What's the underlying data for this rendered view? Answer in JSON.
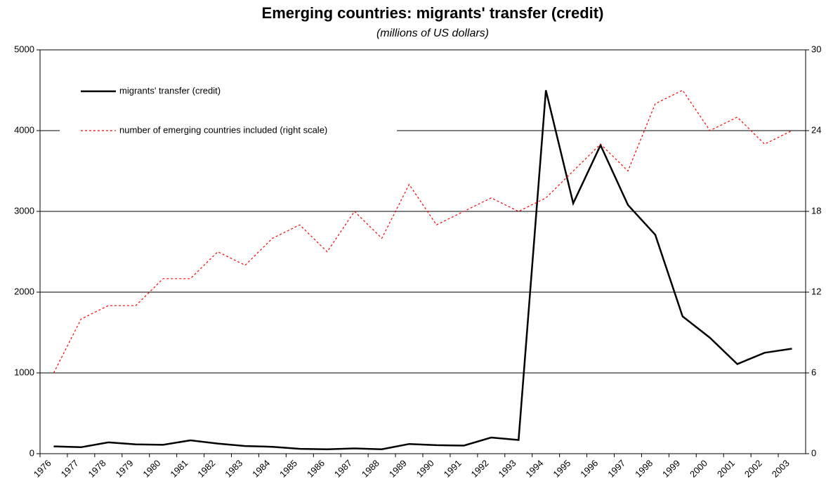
{
  "chart_data": {
    "type": "line",
    "title": "Emerging countries: migrants' transfer (credit)",
    "subtitle": "(millions of US dollars)",
    "categories": [
      "1976",
      "1977",
      "1978",
      "1979",
      "1980",
      "1981",
      "1982",
      "1983",
      "1984",
      "1985",
      "1986",
      "1987",
      "1988",
      "1989",
      "1990",
      "1991",
      "1992",
      "1993",
      "1994",
      "1995",
      "1996",
      "1997",
      "1998",
      "1999",
      "2000",
      "2001",
      "2002",
      "2003"
    ],
    "series": [
      {
        "name": "migrants' transfer (credit)",
        "color": "#000000",
        "style": "solid",
        "values": [
          90,
          80,
          140,
          115,
          110,
          165,
          125,
          95,
          85,
          60,
          55,
          65,
          55,
          120,
          105,
          100,
          200,
          170,
          4500,
          3100,
          3820,
          3080,
          2710,
          1700,
          1435,
          1110,
          1250,
          1300
        ]
      },
      {
        "name": "number of emerging countries included (right scale)",
        "color": "#ff0000",
        "style": "dotted",
        "axis": "y2",
        "values": [
          6,
          10,
          11,
          11,
          13,
          13,
          15,
          14,
          16,
          17,
          15,
          18,
          16,
          20,
          17,
          18,
          19,
          18,
          19,
          21,
          23,
          21,
          26,
          27,
          24,
          25,
          23,
          24
        ]
      }
    ],
    "ylim": [
      0,
      5000
    ],
    "yticks": [
      0,
      1000,
      2000,
      3000,
      4000,
      5000
    ],
    "y2lim": [
      0,
      30
    ],
    "y2ticks": [
      0,
      6,
      12,
      18,
      24,
      30
    ],
    "grid": true,
    "legend": "upper left"
  }
}
